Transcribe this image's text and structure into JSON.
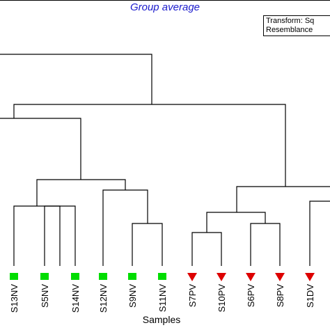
{
  "figure": {
    "title": "Group average",
    "legend_lines": [
      "Transform: Sq",
      "Resemblance"
    ],
    "xlabel": "Samples"
  },
  "samples": [
    {
      "label": "S13NV",
      "marker": "square",
      "color": "#00dd00"
    },
    {
      "label": "S5NV",
      "marker": "square",
      "color": "#00dd00"
    },
    {
      "label": "S14NV",
      "marker": "square",
      "color": "#00dd00"
    },
    {
      "label": "S12NV",
      "marker": "square",
      "color": "#00dd00"
    },
    {
      "label": "S9NV",
      "marker": "square",
      "color": "#00dd00"
    },
    {
      "label": "S11NV",
      "marker": "square",
      "color": "#00dd00"
    },
    {
      "label": "S7PV",
      "marker": "triangle-down",
      "color": "#dd0000"
    },
    {
      "label": "S10PV",
      "marker": "triangle-down",
      "color": "#dd0000"
    },
    {
      "label": "S6PV",
      "marker": "triangle-down",
      "color": "#dd0000"
    },
    {
      "label": "S8PV",
      "marker": "triangle-down",
      "color": "#dd0000"
    },
    {
      "label": "S1DV",
      "marker": "triangle-down",
      "color": "#dd0000"
    }
  ]
}
